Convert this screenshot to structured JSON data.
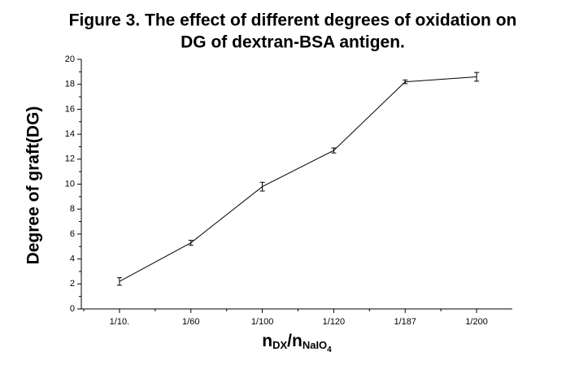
{
  "chart_data": {
    "type": "line",
    "title": [
      "Figure 3. The effect of different degrees of oxidation on",
      "DG of dextran-BSA antigen."
    ],
    "ylabel": "Degree of graft(DG)",
    "xlabel_parts": [
      "n",
      "DX",
      "/n",
      "NaIO",
      "4"
    ],
    "categories": [
      "1/10.",
      "1/60",
      "1/100",
      "1/120",
      "1/187",
      "1/200"
    ],
    "series": [
      {
        "color": "#000000",
        "values": [
          2.2,
          5.3,
          9.8,
          12.7,
          18.2,
          18.6
        ],
        "errors": [
          0.3,
          0.2,
          0.35,
          0.2,
          0.15,
          0.35
        ]
      }
    ],
    "ylim": [
      0,
      20
    ],
    "yticks": [
      0,
      2,
      4,
      6,
      8,
      10,
      12,
      14,
      16,
      18,
      20
    ],
    "grid": false
  }
}
